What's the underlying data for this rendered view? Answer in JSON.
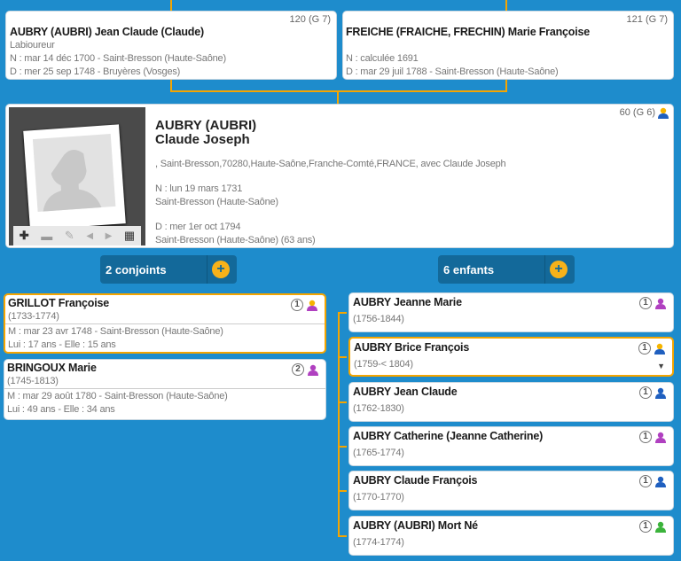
{
  "father": {
    "number": "120 (G 7)",
    "name": "AUBRY (AUBRI) Jean Claude (Claude)",
    "occupation": "Labioureur",
    "birth": "N : mar 14 déc 1700 - Saint-Bresson (Haute-Saône)",
    "death": "D : mer 25 sep 1748 - Bruyères (Vosges)"
  },
  "mother": {
    "number": "121 (G 7)",
    "name": "FREICHE (FRAICHE, FRECHIN) Marie Françoise",
    "birth": "N : calculée 1691",
    "death": "D : mar 29 juil 1788 - Saint-Bresson (Haute-Saône)"
  },
  "main": {
    "number": "60 (G 6)",
    "surname": "AUBRY (AUBRI)",
    "given": "Claude Joseph",
    "note": ", Saint-Bresson,70280,Haute-Saône,Franche-Comté,FRANCE, avec Claude Joseph",
    "birth_date": "N : lun 19 mars 1731",
    "birth_place": "Saint-Bresson (Haute-Saône)",
    "death_date": "D : mer 1er oct 1794",
    "death_place": "Saint-Bresson (Haute-Saône) (63 ans)",
    "photo_tools": [
      "plus-icon",
      "minus-icon",
      "pencil-icon",
      "arrow-left-icon",
      "arrow-right-icon",
      "film-icon"
    ]
  },
  "buttons": {
    "spouses": "2 conjoints",
    "children": "6 enfants",
    "add": "+"
  },
  "spouses": [
    {
      "name": "GRILLOT Françoise",
      "dates": "(1733-1774)",
      "marriage": "M : mar 23 avr 1748 - Saint-Bresson (Haute-Saône)",
      "ages": "Lui : 17 ans - Elle : 15 ans",
      "order": "1",
      "selected": true,
      "head": "#f5b400",
      "body": "#b040c0"
    },
    {
      "name": "BRINGOUX Marie",
      "dates": "(1745-1813)",
      "marriage": "M : mar 29 août 1780 - Saint-Bresson (Haute-Saône)",
      "ages": "Lui : 49 ans - Elle : 34 ans",
      "order": "2",
      "selected": false,
      "head": "#b040c0",
      "body": "#b040c0"
    }
  ],
  "children": [
    {
      "name": "AUBRY Jeanne Marie",
      "dates": "(1756-1844)",
      "order": "1",
      "selected": false,
      "head": "#b040c0",
      "body": "#b040c0"
    },
    {
      "name": "AUBRY Brice François",
      "dates": "(1759-< 1804)",
      "order": "1",
      "selected": true,
      "head": "#f5b400",
      "body": "#1f5fbf"
    },
    {
      "name": "AUBRY Jean Claude",
      "dates": "(1762-1830)",
      "order": "1",
      "selected": false,
      "head": "#1f5fbf",
      "body": "#1f5fbf"
    },
    {
      "name": "AUBRY Catherine (Jeanne Catherine)",
      "dates": "(1765-1774)",
      "order": "1",
      "selected": false,
      "head": "#b040c0",
      "body": "#b040c0"
    },
    {
      "name": "AUBRY Claude François",
      "dates": "(1770-1770)",
      "order": "1",
      "selected": false,
      "head": "#1f5fbf",
      "body": "#1f5fbf"
    },
    {
      "name": "AUBRY (AUBRI) Mort Né",
      "dates": "(1774-1774)",
      "order": "1",
      "selected": false,
      "head": "#3bb33b",
      "body": "#3bb33b"
    }
  ],
  "colors": {
    "background": "#1e8ccc",
    "accent": "#f5a500",
    "button": "#13699a"
  }
}
